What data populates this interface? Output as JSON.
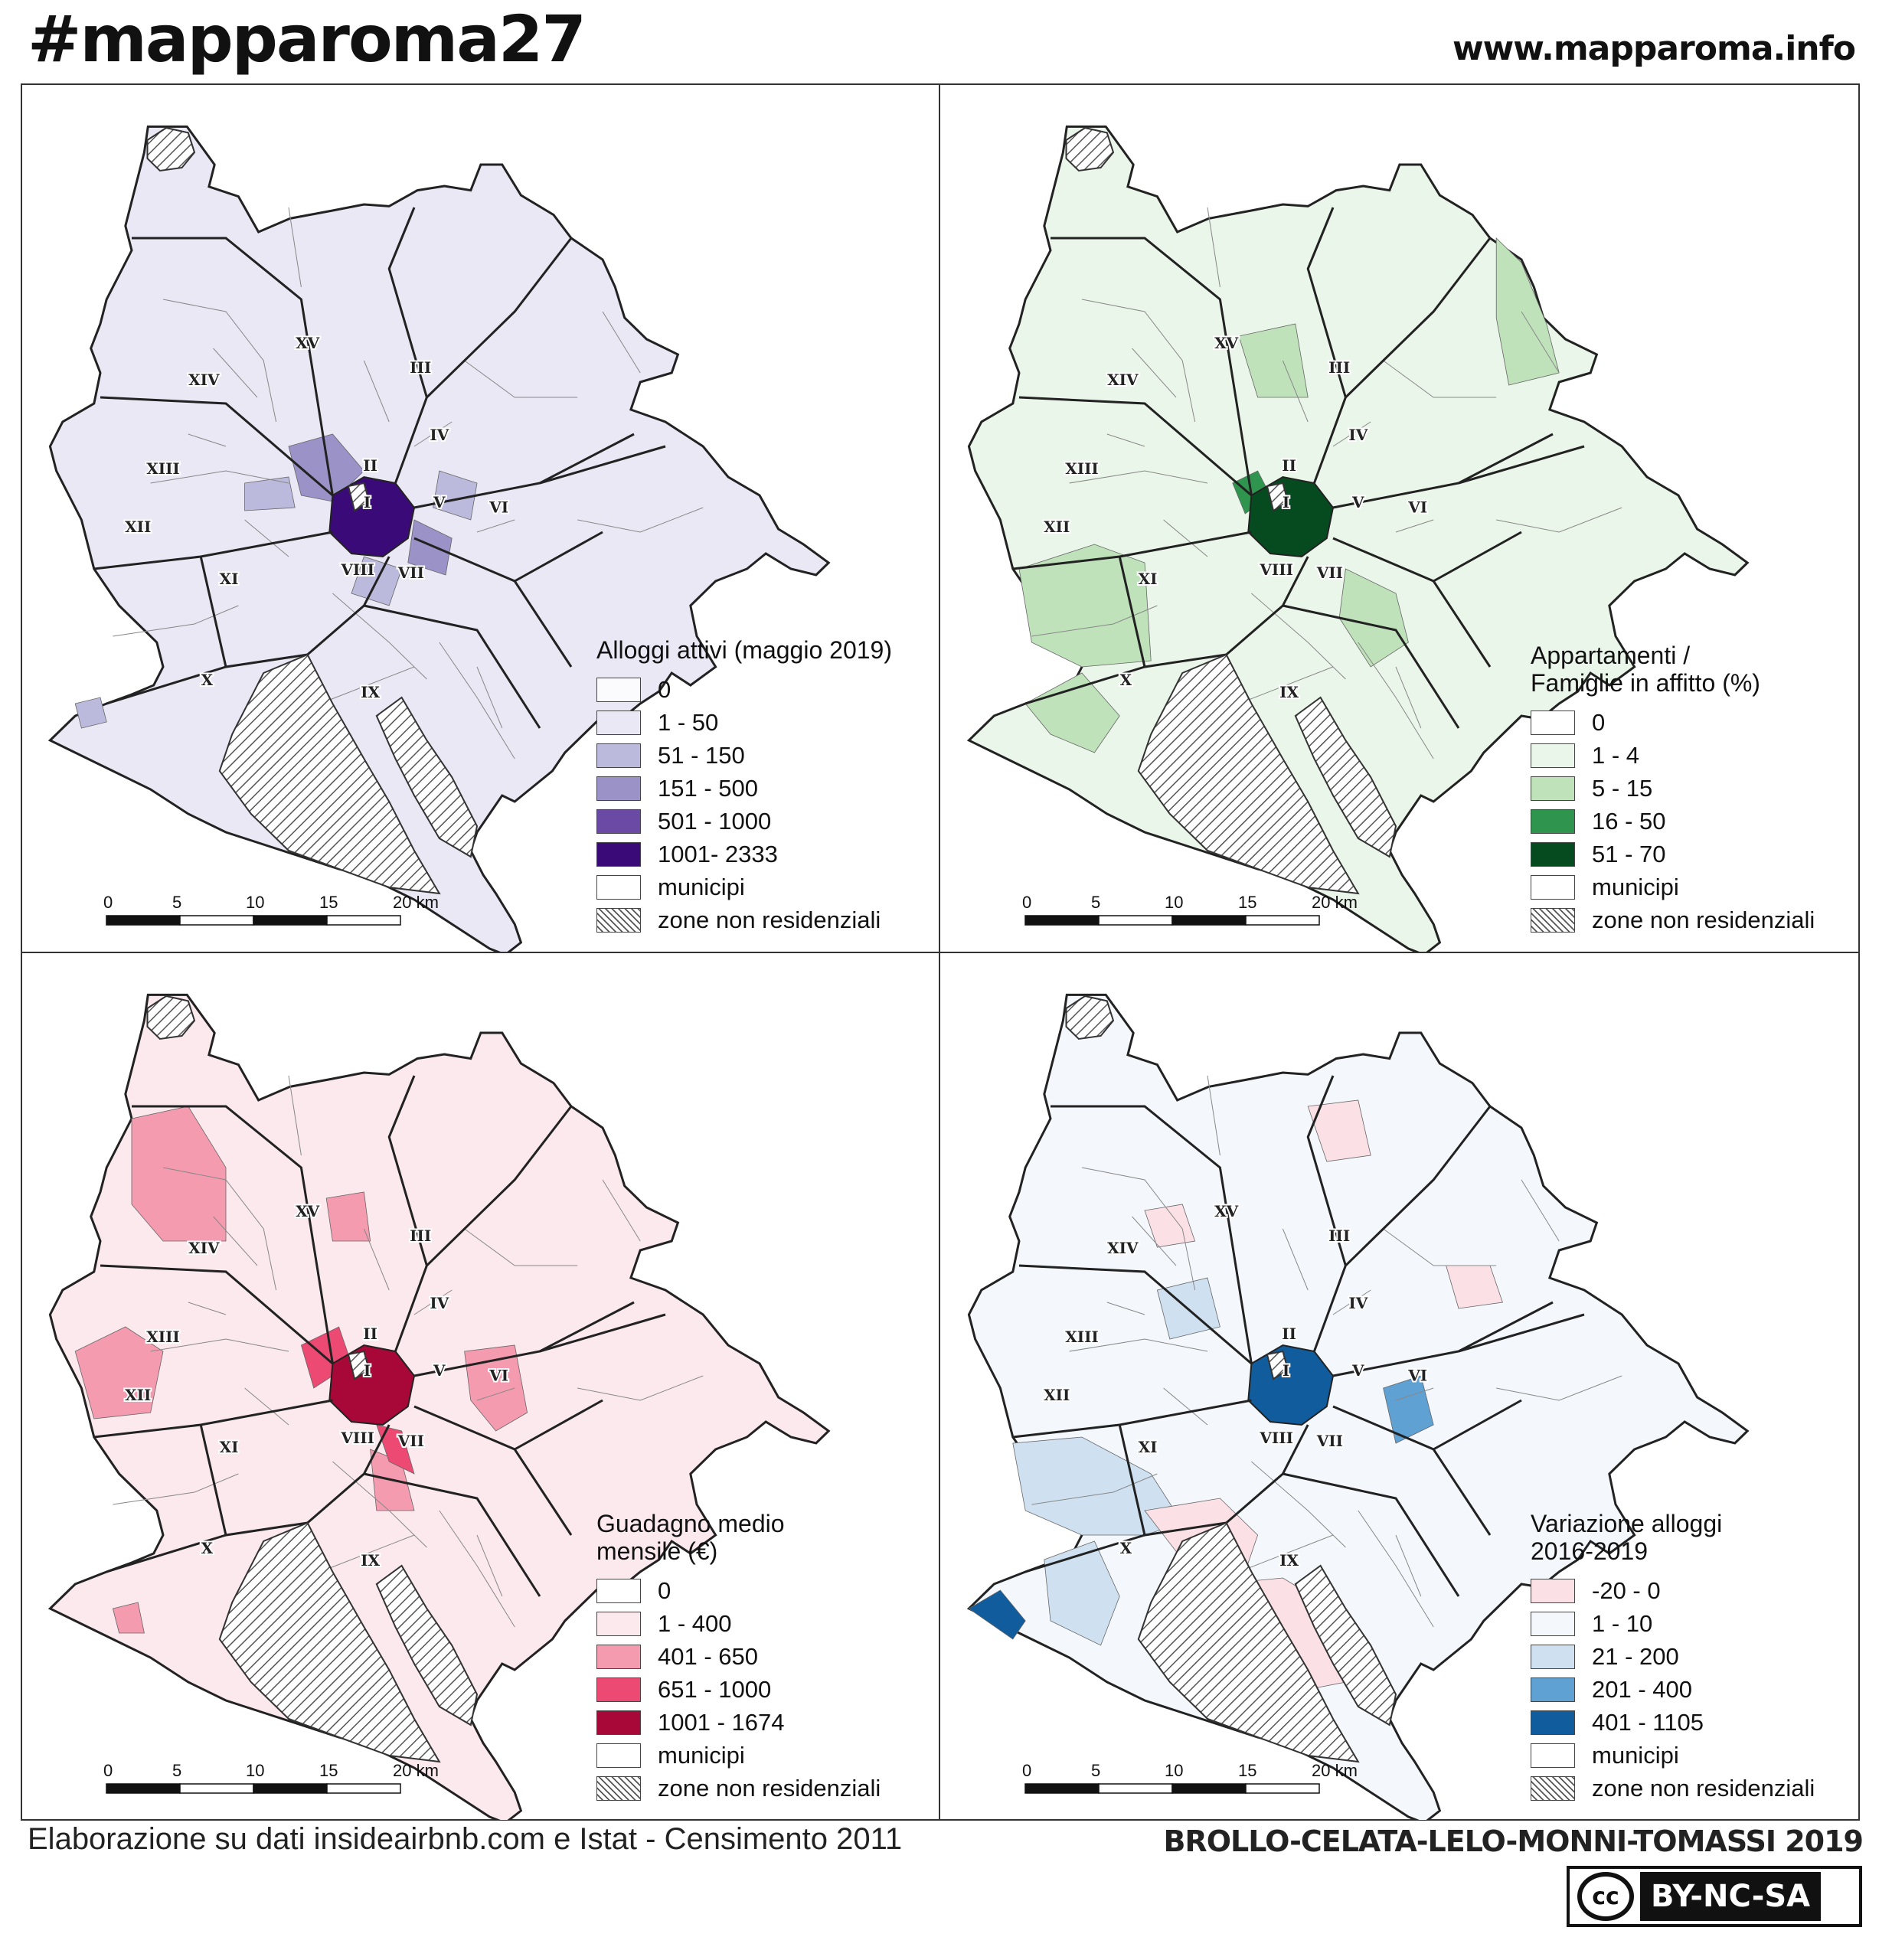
{
  "header": {
    "hashtag": "#mapparoma27",
    "website": "www.mapparoma.info"
  },
  "footer": {
    "credit": "Elaborazione su dati insideairbnb.com e Istat - Censimento 2011",
    "authors": "BROLLO-CELATA-LELO-MONNI-TOMASSI 2019",
    "license_symbol": "cc",
    "license": "BY-NC-SA"
  },
  "scale_labels": [
    "0",
    "5",
    "10",
    "15",
    "20 km"
  ],
  "municipi_labels": [
    "I",
    "II",
    "III",
    "IV",
    "V",
    "VI",
    "VII",
    "VIII",
    "IX",
    "X",
    "XI",
    "XII",
    "XIII",
    "XIV",
    "XV"
  ],
  "panels": [
    {
      "legend_title": "Alloggi attivi (maggio 2019)",
      "classes": [
        {
          "label": "0",
          "color": "#fbfbfd"
        },
        {
          "label": "1 - 50",
          "color": "#e9e8f4"
        },
        {
          "label": "51 - 150",
          "color": "#bcbadc"
        },
        {
          "label": "151 - 500",
          "color": "#9b93c8"
        },
        {
          "label": "501 - 1000",
          "color": "#6a4aa5"
        },
        {
          "label": "1001- 2333",
          "color": "#3a0a78"
        }
      ],
      "municipi_label": "municipi",
      "non_residential_label": "zone non residenziali"
    },
    {
      "legend_title": "Appartamenti /\nFamiglie in affitto (%)",
      "classes": [
        {
          "label": "0",
          "color": "#ffffff"
        },
        {
          "label": "1 - 4",
          "color": "#ebf6ea"
        },
        {
          "label": "5 - 15",
          "color": "#bfe2bb"
        },
        {
          "label": "16 - 50",
          "color": "#2e944e"
        },
        {
          "label": "51 - 70",
          "color": "#064a1f"
        }
      ],
      "municipi_label": "municipi",
      "non_residential_label": "zone non residenziali"
    },
    {
      "legend_title": "Guadagno medio\nmensile (€)",
      "classes": [
        {
          "label": "0",
          "color": "#ffffff"
        },
        {
          "label": "1 - 400",
          "color": "#fbe9ee"
        },
        {
          "label": "401 - 650",
          "color": "#f59bb0"
        },
        {
          "label": "651 - 1000",
          "color": "#ec4a72"
        },
        {
          "label": "1001 - 1674",
          "color": "#a80838"
        }
      ],
      "municipi_label": "municipi",
      "non_residential_label": "zone non residenziali"
    },
    {
      "legend_title": "Variazione alloggi\n2016-2019",
      "classes": [
        {
          "label": " -20 - 0",
          "color": "#fbe1e6"
        },
        {
          "label": "1 - 10",
          "color": "#f4f8fc"
        },
        {
          "label": " 21 - 200",
          "color": "#cfe1f1"
        },
        {
          "label": " 201 - 400",
          "color": "#5fa1d3"
        },
        {
          "label": " 401 - 1105",
          "color": "#105c9c"
        }
      ],
      "municipi_label": "municipi",
      "non_residential_label": "zone non residenziali"
    }
  ]
}
